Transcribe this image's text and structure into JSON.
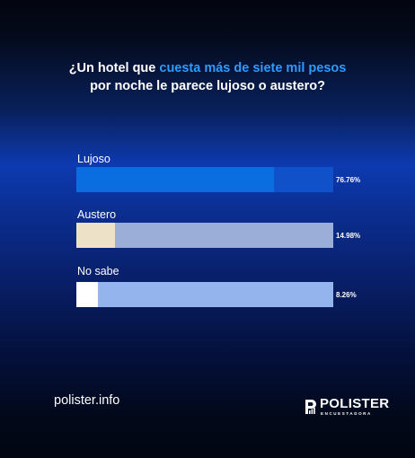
{
  "title": {
    "part1": "¿Un hotel que ",
    "highlight": "cuesta más de siete mil pesos",
    "line2": "por noche le parece lujoso o austero?"
  },
  "chart_data": {
    "type": "bar",
    "orientation": "horizontal",
    "title": "¿Un hotel que cuesta más de siete mil pesos por noche le parece lujoso o austero?",
    "categories": [
      "Lujoso",
      "Austero",
      "No sabe"
    ],
    "values": [
      76.76,
      14.98,
      8.26
    ],
    "value_labels": [
      "76.76%",
      "14.98%",
      "8.26%"
    ],
    "unit": "%",
    "xlim": [
      0,
      100
    ],
    "grid": false,
    "colors": {
      "fill": [
        "#0a6ee0",
        "#ede2c8",
        "#ffffff"
      ],
      "track": [
        "#1050c8",
        "#9aaed8",
        "#93b4ec"
      ]
    }
  },
  "footer": {
    "url": "polister.info",
    "brand": "POLISTER",
    "brand_sub": "ENCUESTADORA",
    "brand_icon": "polister-logo-icon"
  }
}
